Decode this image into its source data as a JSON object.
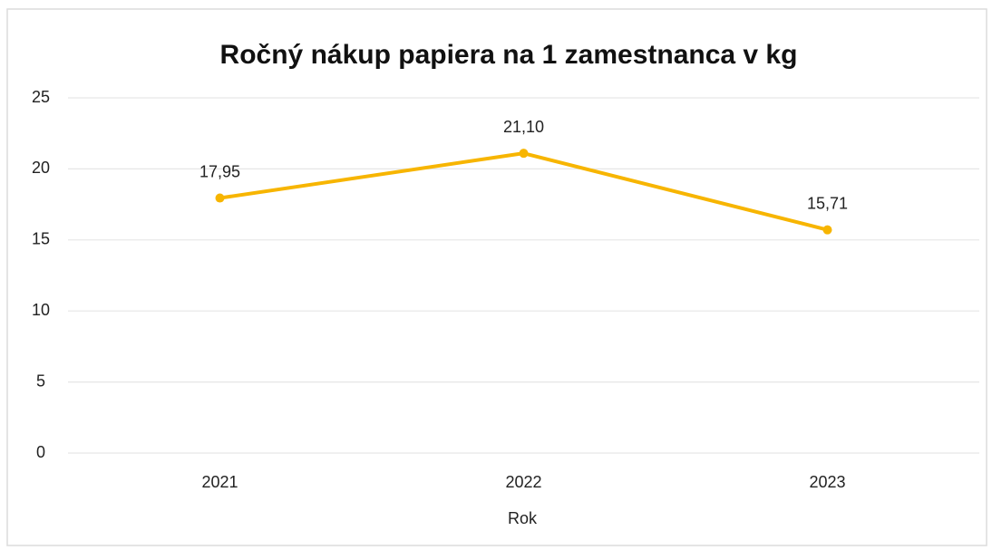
{
  "chart_data": {
    "type": "line",
    "title": "Ročný nákup papiera na 1 zamestnanca v kg",
    "categories": [
      "2021",
      "2022",
      "2023"
    ],
    "series": [
      {
        "name": null,
        "color": "#f7b500",
        "values": [
          17.95,
          21.1,
          15.71
        ],
        "value_labels": [
          "17,95",
          "21,10",
          "15,71"
        ]
      }
    ],
    "x_label": "Rok",
    "ylim": [
      0,
      25
    ],
    "yticks": [
      0,
      5,
      10,
      15,
      20,
      25
    ],
    "grid": true
  }
}
